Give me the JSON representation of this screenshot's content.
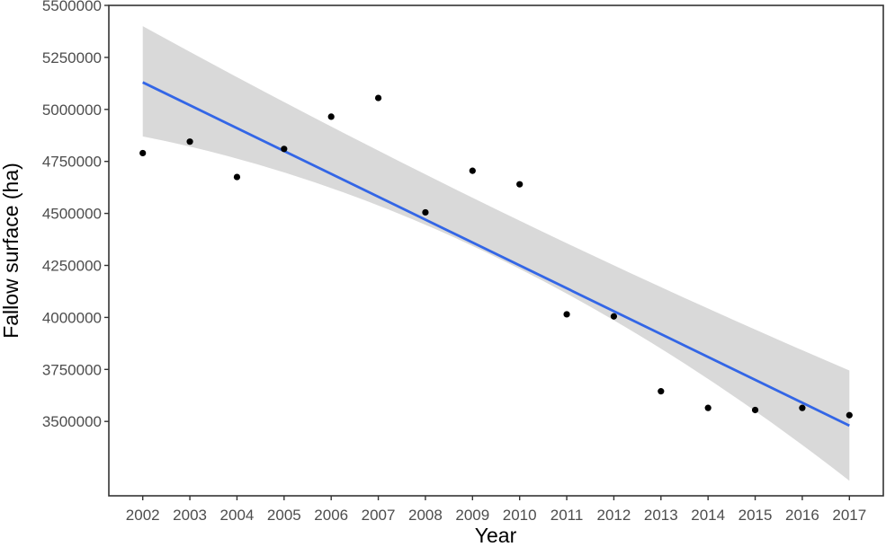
{
  "chart_data": {
    "type": "scatter",
    "title": "",
    "xlabel": "Year",
    "ylabel": "Fallow surface (ha)",
    "x": [
      2002,
      2003,
      2004,
      2005,
      2006,
      2007,
      2008,
      2009,
      2010,
      2011,
      2012,
      2013,
      2014,
      2015,
      2016,
      2017
    ],
    "y": [
      4790000,
      4845000,
      4675000,
      4810000,
      4965000,
      5055000,
      4505000,
      4705000,
      4640000,
      4015000,
      4005000,
      3645000,
      3565000,
      3555000,
      3565000,
      3530000
    ],
    "xlim": [
      2001.28,
      2017.72
    ],
    "ylim": [
      3142500,
      5500000
    ],
    "xticks": [
      "2002",
      "2003",
      "2004",
      "2005",
      "2006",
      "2007",
      "2008",
      "2009",
      "2010",
      "2011",
      "2012",
      "2013",
      "2014",
      "2015",
      "2016",
      "2017"
    ],
    "yticks": [
      "3500000",
      "3750000",
      "4000000",
      "4250000",
      "4500000",
      "4750000",
      "5000000",
      "5250000",
      "5500000"
    ],
    "fit_line": {
      "x": [
        2002,
        2017
      ],
      "y": [
        5130000,
        3480000
      ],
      "color": "#3366e6"
    },
    "confidence_band": {
      "x": [
        2002,
        2009.5,
        2017
      ],
      "lower": [
        4870000,
        4290000,
        3215000
      ],
      "upper": [
        5400000,
        4520000,
        3745000
      ],
      "color": "#d9d9d9"
    },
    "point_color": "#000000",
    "grid": false,
    "legend": "none"
  }
}
